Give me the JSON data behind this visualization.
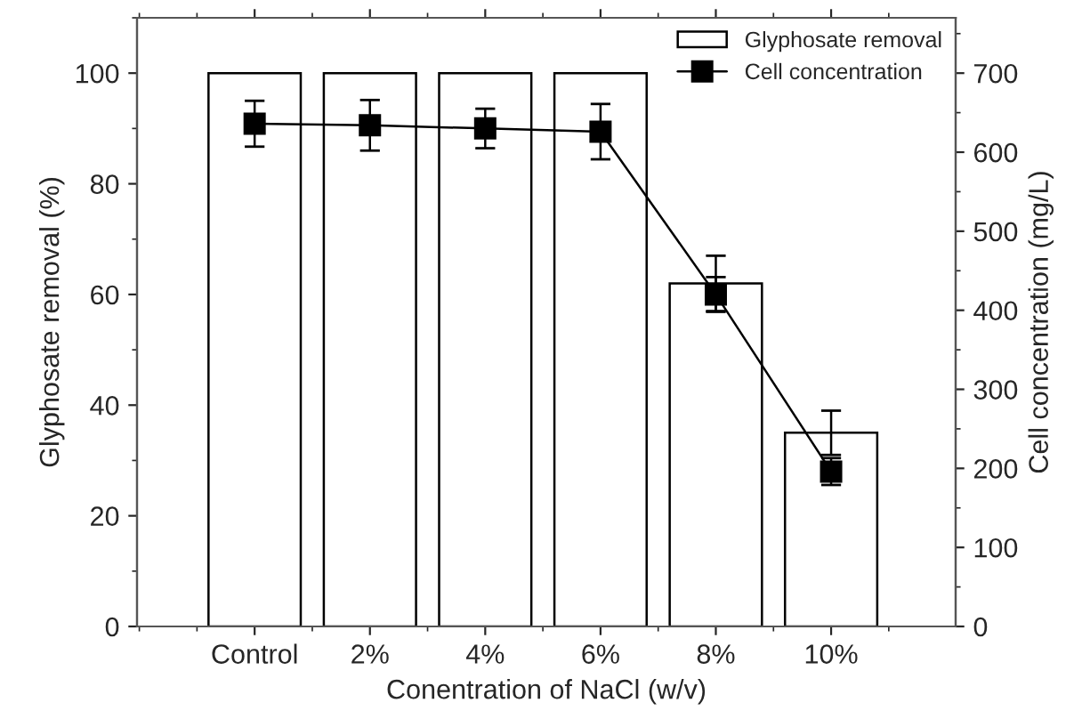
{
  "chart_data": {
    "type": "bar",
    "xlabel": "Conentration of NaCl (w/v)",
    "ylabel": "Glyphosate removal (%)",
    "y2label": "Cell concentration (mg/L)",
    "categories": [
      "Control",
      "2%",
      "4%",
      "6%",
      "8%",
      "10%"
    ],
    "series": [
      {
        "name": "Glyphosate removal",
        "color": "#ffffff",
        "values": [
          100,
          100,
          100,
          100,
          62,
          35
        ],
        "errors": [
          null,
          null,
          null,
          null,
          5,
          4
        ]
      },
      {
        "name": "Cell concentration",
        "type": "line",
        "axis": "y2",
        "color": "#000000",
        "marker": "square",
        "values": [
          636,
          634,
          630,
          626,
          420,
          196
        ],
        "errors": [
          29,
          32,
          25,
          35,
          22,
          17
        ]
      }
    ],
    "ylim": [
      0,
      110
    ],
    "yticks": [
      0,
      20,
      40,
      60,
      80,
      100
    ],
    "y2lim": [
      0,
      770
    ],
    "y2ticks": [
      0,
      100,
      200,
      300,
      400,
      500,
      600,
      700
    ],
    "grid": false,
    "legend": "top right"
  }
}
